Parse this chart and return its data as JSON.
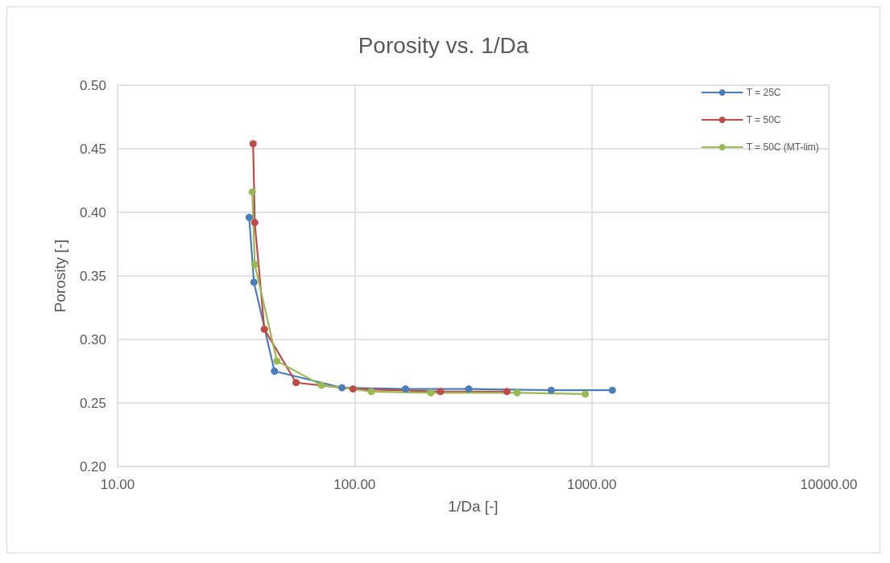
{
  "chart_data": {
    "type": "line",
    "title": "Porosity vs. 1/Da",
    "xlabel": "1/Da [-]",
    "ylabel": "Porosity [-]",
    "log": "x",
    "grid": true,
    "legend": "top right",
    "marker": "circle",
    "line_style": "solid",
    "xlim": [
      10,
      10000
    ],
    "xticks": [
      {
        "value": 10,
        "label": "10.00"
      },
      {
        "value": 100,
        "label": "100.00"
      },
      {
        "value": 1000,
        "label": "1000.00"
      },
      {
        "value": 10000,
        "label": "10000.00"
      }
    ],
    "ylim": [
      0.2,
      0.5
    ],
    "yticks": [
      {
        "value": 0.2,
        "label": "0.20"
      },
      {
        "value": 0.25,
        "label": "0.25"
      },
      {
        "value": 0.3,
        "label": "0.30"
      },
      {
        "value": 0.35,
        "label": "0.35"
      },
      {
        "value": 0.4,
        "label": "0.40"
      },
      {
        "value": 0.45,
        "label": "0.45"
      },
      {
        "value": 0.5,
        "label": "0.50"
      }
    ],
    "series": [
      {
        "name": "T = 25C",
        "color": "#4a7ebb",
        "x": [
          35.9,
          37.6,
          45.9,
          88.4,
          164,
          303,
          675,
          1222
        ],
        "values": [
          0.396,
          0.345,
          0.275,
          0.262,
          0.261,
          0.261,
          0.26,
          0.26
        ]
      },
      {
        "name": "T = 50C",
        "color": "#be4b48",
        "x": [
          37.3,
          37.9,
          41.6,
          56.6,
          98.4,
          230,
          439
        ],
        "values": [
          0.454,
          0.392,
          0.308,
          0.266,
          0.261,
          0.259,
          0.259
        ]
      },
      {
        "name": "T = 50C (MT-lim)",
        "color": "#98b954",
        "x": [
          37.0,
          37.9,
          47.0,
          72.4,
          117.5,
          209.5,
          485,
          940
        ],
        "values": [
          0.416,
          0.359,
          0.283,
          0.264,
          0.259,
          0.258,
          0.258,
          0.257
        ]
      }
    ]
  }
}
